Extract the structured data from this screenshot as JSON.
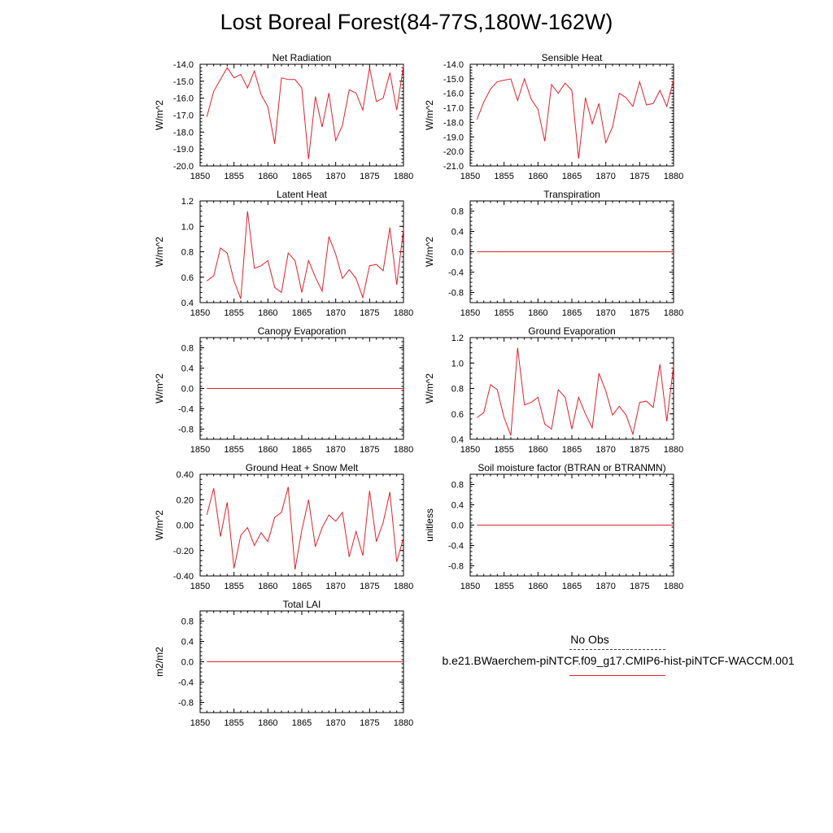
{
  "page_title": "Lost Boreal Forest(84-77S,180W-162W)",
  "legend": {
    "obs_label": "No Obs",
    "run_label": "b.e21.BWaerchem-piNTCF.f09_g17.CMIP6-hist-piNTCF-WACCM.001",
    "run_color": "#e0202a",
    "obs_color": "#444444"
  },
  "chart_data": [
    {
      "type": "line",
      "title": "Net Radiation",
      "ylabel": "W/m^2",
      "x": [
        1851,
        1852,
        1853,
        1854,
        1855,
        1856,
        1857,
        1858,
        1859,
        1860,
        1861,
        1862,
        1863,
        1864,
        1865,
        1866,
        1867,
        1868,
        1869,
        1870,
        1871,
        1872,
        1873,
        1874,
        1875,
        1876,
        1877,
        1878,
        1879,
        1880
      ],
      "xticks": [
        "1850",
        "1855",
        "1860",
        "1865",
        "1870",
        "1875",
        "1880"
      ],
      "xlim": [
        1850,
        1880
      ],
      "ylim": [
        -20,
        -14
      ],
      "yticks": [
        "-20.0",
        "-19.0",
        "-18.0",
        "-17.0",
        "-16.0",
        "-15.0",
        "-14.0"
      ],
      "series": [
        {
          "values": [
            -17.1,
            -15.6,
            -14.9,
            -14.2,
            -14.8,
            -14.6,
            -15.4,
            -14.4,
            -15.8,
            -16.5,
            -18.7,
            -14.8,
            -14.9,
            -14.9,
            -15.4,
            -19.6,
            -15.9,
            -17.7,
            -15.7,
            -18.5,
            -17.6,
            -15.5,
            -15.7,
            -16.7,
            -14.2,
            -16.2,
            -16.0,
            -14.5,
            -16.7,
            -14.1
          ]
        }
      ]
    },
    {
      "type": "line",
      "title": "Sensible Heat",
      "ylabel": "W/m^2",
      "x": [
        1851,
        1852,
        1853,
        1854,
        1855,
        1856,
        1857,
        1858,
        1859,
        1860,
        1861,
        1862,
        1863,
        1864,
        1865,
        1866,
        1867,
        1868,
        1869,
        1870,
        1871,
        1872,
        1873,
        1874,
        1875,
        1876,
        1877,
        1878,
        1879,
        1880
      ],
      "xticks": [
        "1850",
        "1855",
        "1860",
        "1865",
        "1870",
        "1875",
        "1880"
      ],
      "xlim": [
        1850,
        1880
      ],
      "ylim": [
        -21,
        -14
      ],
      "yticks": [
        "-21.0",
        "-20.0",
        "-19.0",
        "-18.0",
        "-17.0",
        "-16.0",
        "-15.0",
        "-14.0"
      ],
      "series": [
        {
          "values": [
            -17.8,
            -16.6,
            -15.7,
            -15.2,
            -15.1,
            -15.0,
            -16.5,
            -15.0,
            -16.4,
            -17.1,
            -19.3,
            -15.4,
            -16.0,
            -15.3,
            -15.8,
            -20.5,
            -16.3,
            -18.1,
            -16.7,
            -19.4,
            -18.3,
            -16.0,
            -16.3,
            -16.9,
            -15.2,
            -16.8,
            -16.7,
            -15.8,
            -16.9,
            -15.1
          ]
        }
      ]
    },
    {
      "type": "line",
      "title": "Latent Heat",
      "ylabel": "W/m^2",
      "x": [
        1851,
        1852,
        1853,
        1854,
        1855,
        1856,
        1857,
        1858,
        1859,
        1860,
        1861,
        1862,
        1863,
        1864,
        1865,
        1866,
        1867,
        1868,
        1869,
        1870,
        1871,
        1872,
        1873,
        1874,
        1875,
        1876,
        1877,
        1878,
        1879,
        1880
      ],
      "xticks": [
        "1850",
        "1855",
        "1860",
        "1865",
        "1870",
        "1875",
        "1880"
      ],
      "xlim": [
        1850,
        1880
      ],
      "ylim": [
        0.4,
        1.2
      ],
      "yticks": [
        "0.4",
        "0.6",
        "0.8",
        "1.0",
        "1.2"
      ],
      "series": [
        {
          "values": [
            0.57,
            0.61,
            0.83,
            0.79,
            0.57,
            0.43,
            1.12,
            0.67,
            0.69,
            0.73,
            0.52,
            0.48,
            0.79,
            0.73,
            0.48,
            0.73,
            0.6,
            0.49,
            0.92,
            0.78,
            0.59,
            0.66,
            0.59,
            0.44,
            0.69,
            0.7,
            0.65,
            0.99,
            0.54,
            0.98
          ]
        }
      ]
    },
    {
      "type": "line",
      "title": "Transpiration",
      "ylabel": "W/m^2",
      "x": [
        1851,
        1880
      ],
      "xticks": [
        "1850",
        "1855",
        "1860",
        "1865",
        "1870",
        "1875",
        "1880"
      ],
      "xlim": [
        1850,
        1880
      ],
      "ylim": [
        -1,
        1
      ],
      "yticks": [
        "-0.8",
        "-0.4",
        "0.0",
        "0.4",
        "0.8"
      ],
      "series": [
        {
          "values": [
            0.0,
            0.0
          ]
        }
      ]
    },
    {
      "type": "line",
      "title": "Canopy Evaporation",
      "ylabel": "W/m^2",
      "x": [
        1851,
        1880
      ],
      "xticks": [
        "1850",
        "1855",
        "1860",
        "1865",
        "1870",
        "1875",
        "1880"
      ],
      "xlim": [
        1850,
        1880
      ],
      "ylim": [
        -1,
        1
      ],
      "yticks": [
        "-0.8",
        "-0.4",
        "0.0",
        "0.4",
        "0.8"
      ],
      "series": [
        {
          "values": [
            0.0,
            0.0
          ]
        }
      ]
    },
    {
      "type": "line",
      "title": "Ground Evaporation",
      "ylabel": "W/m^2",
      "x": [
        1851,
        1852,
        1853,
        1854,
        1855,
        1856,
        1857,
        1858,
        1859,
        1860,
        1861,
        1862,
        1863,
        1864,
        1865,
        1866,
        1867,
        1868,
        1869,
        1870,
        1871,
        1872,
        1873,
        1874,
        1875,
        1876,
        1877,
        1878,
        1879,
        1880
      ],
      "xticks": [
        "1850",
        "1855",
        "1860",
        "1865",
        "1870",
        "1875",
        "1880"
      ],
      "xlim": [
        1850,
        1880
      ],
      "ylim": [
        0.4,
        1.2
      ],
      "yticks": [
        "0.4",
        "0.6",
        "0.8",
        "1.0",
        "1.2"
      ],
      "series": [
        {
          "values": [
            0.57,
            0.61,
            0.83,
            0.79,
            0.57,
            0.43,
            1.12,
            0.67,
            0.69,
            0.73,
            0.52,
            0.48,
            0.79,
            0.73,
            0.48,
            0.73,
            0.6,
            0.49,
            0.92,
            0.78,
            0.59,
            0.66,
            0.59,
            0.44,
            0.69,
            0.7,
            0.65,
            0.99,
            0.54,
            0.98
          ]
        }
      ]
    },
    {
      "type": "line",
      "title": "Ground Heat + Snow Melt",
      "ylabel": "W/m^2",
      "x": [
        1851,
        1852,
        1853,
        1854,
        1855,
        1856,
        1857,
        1858,
        1859,
        1860,
        1861,
        1862,
        1863,
        1864,
        1865,
        1866,
        1867,
        1868,
        1869,
        1870,
        1871,
        1872,
        1873,
        1874,
        1875,
        1876,
        1877,
        1878,
        1879,
        1880
      ],
      "xticks": [
        "1850",
        "1855",
        "1860",
        "1865",
        "1870",
        "1875",
        "1880"
      ],
      "xlim": [
        1850,
        1880
      ],
      "ylim": [
        -0.4,
        0.4
      ],
      "yticks": [
        "-0.40",
        "-0.20",
        "0.00",
        "0.20",
        "0.40"
      ],
      "series": [
        {
          "values": [
            0.08,
            0.29,
            -0.09,
            0.18,
            -0.34,
            -0.08,
            -0.02,
            -0.16,
            -0.06,
            -0.13,
            0.06,
            0.1,
            0.3,
            -0.35,
            -0.04,
            0.2,
            -0.17,
            -0.02,
            0.08,
            0.03,
            0.1,
            -0.25,
            -0.05,
            -0.24,
            0.27,
            -0.13,
            0.02,
            0.26,
            -0.29,
            -0.1
          ]
        }
      ]
    },
    {
      "type": "line",
      "title": "Soil moisture factor (BTRAN or BTRANMN)",
      "ylabel": "unitless",
      "x": [
        1851,
        1880
      ],
      "xticks": [
        "1850",
        "1855",
        "1860",
        "1865",
        "1870",
        "1875",
        "1880"
      ],
      "xlim": [
        1850,
        1880
      ],
      "ylim": [
        -1,
        1
      ],
      "yticks": [
        "-0.8",
        "-0.4",
        "0.0",
        "0.4",
        "0.8"
      ],
      "series": [
        {
          "values": [
            0.0,
            0.0
          ]
        }
      ]
    },
    {
      "type": "line",
      "title": "Total LAI",
      "ylabel": "m2/m2",
      "x": [
        1851,
        1880
      ],
      "xticks": [
        "1850",
        "1855",
        "1860",
        "1865",
        "1870",
        "1875",
        "1880"
      ],
      "xlim": [
        1850,
        1880
      ],
      "ylim": [
        -1,
        1
      ],
      "yticks": [
        "-0.8",
        "-0.4",
        "0.0",
        "0.4",
        "0.8"
      ],
      "series": [
        {
          "values": [
            0.0,
            0.0
          ]
        }
      ]
    }
  ]
}
